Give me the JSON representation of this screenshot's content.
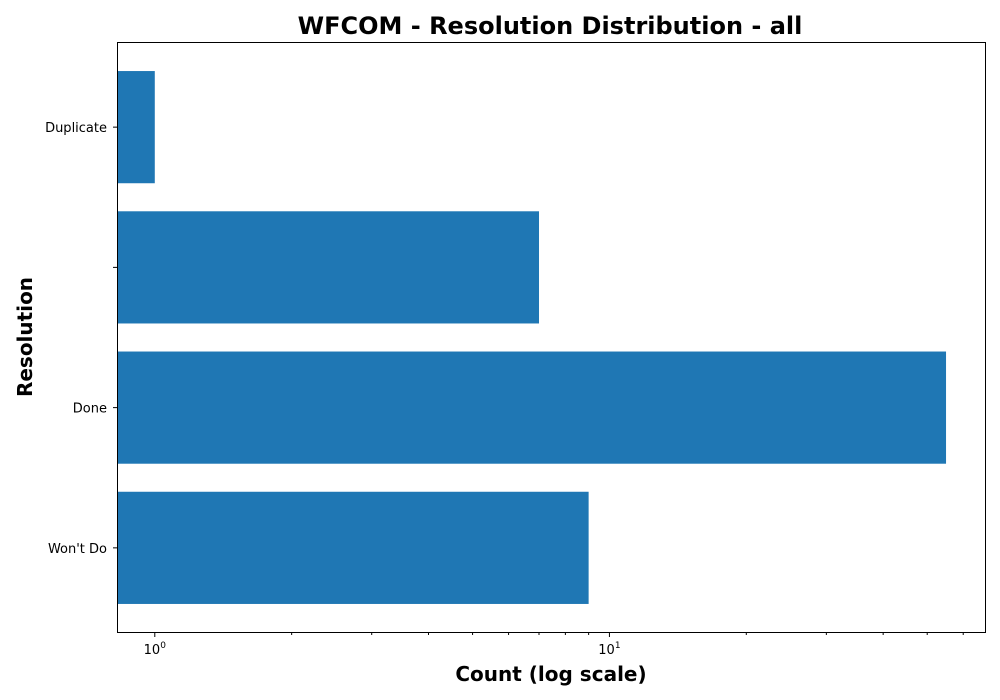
{
  "chart_data": {
    "type": "bar",
    "orientation": "horizontal",
    "title": "WFCOM - Resolution Distribution - all",
    "xlabel": "Count (log scale)",
    "ylabel": "Resolution",
    "x_scale": "log",
    "xlim": [
      0.83,
      67
    ],
    "categories": [
      "Duplicate",
      "",
      "Done",
      "Won't Do"
    ],
    "values": [
      1,
      7,
      55,
      9
    ],
    "bar_color": "#1f77b4",
    "x_major_ticks": [
      {
        "value": 1,
        "base": "10",
        "exp": "0"
      },
      {
        "value": 10,
        "base": "10",
        "exp": "1"
      }
    ],
    "grid": false,
    "legend": "none"
  }
}
